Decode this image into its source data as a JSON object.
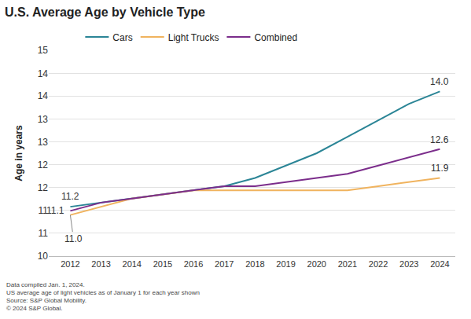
{
  "chart_data": {
    "type": "line",
    "title": "U.S. Average Age by Vehicle Type",
    "y_label": "Age in years",
    "x": [
      2012,
      2013,
      2014,
      2015,
      2016,
      2017,
      2018,
      2019,
      2020,
      2021,
      2022,
      2023,
      2024
    ],
    "series": [
      {
        "name": "Cars",
        "color": "#2b8596",
        "values": [
          11.2,
          11.3,
          11.4,
          11.5,
          11.6,
          11.7,
          11.9,
          12.2,
          12.5,
          12.9,
          13.3,
          13.7,
          14.0
        ]
      },
      {
        "name": "Light Trucks",
        "color": "#f0b35e",
        "values": [
          11.0,
          11.2,
          11.4,
          11.5,
          11.6,
          11.6,
          11.6,
          11.6,
          11.6,
          11.6,
          11.7,
          11.8,
          11.9
        ]
      },
      {
        "name": "Combined",
        "color": "#7b2d8b",
        "values": [
          11.1,
          11.3,
          11.4,
          11.5,
          11.6,
          11.7,
          11.7,
          11.8,
          11.9,
          12.0,
          12.2,
          12.4,
          12.6
        ]
      }
    ],
    "annotations": [
      {
        "series": "Cars",
        "x": 2024,
        "text": "14.0"
      },
      {
        "series": "Combined",
        "x": 2024,
        "text": "12.6"
      },
      {
        "series": "Light Trucks",
        "x": 2024,
        "text": "11.9"
      },
      {
        "series": "Cars",
        "x": 2012,
        "text": "11.2"
      },
      {
        "series": "Combined",
        "x": 2012,
        "text": "11.1"
      },
      {
        "series": "Light Trucks",
        "x": 2012,
        "text": "11.0"
      }
    ],
    "xlim": [
      2011.3,
      2024.5
    ],
    "xticks": [
      2012,
      2013,
      2014,
      2015,
      2016,
      2017,
      2018,
      2019,
      2020,
      2021,
      2022,
      2023,
      2024
    ],
    "ylim": [
      10,
      15
    ],
    "yticks": [
      10,
      {
        "value": 10.56,
        "label": "11"
      },
      {
        "value": 11.11,
        "label": "11"
      },
      {
        "value": 11.67,
        "label": "12"
      },
      {
        "value": 12.22,
        "label": "12"
      },
      {
        "value": 12.78,
        "label": "13"
      },
      {
        "value": 13.33,
        "label": "13"
      },
      {
        "value": 13.89,
        "label": "14"
      },
      {
        "value": 14.44,
        "label": "14"
      },
      15
    ],
    "grid": true,
    "legend": "top",
    "notes": [
      "Data compiled Jan. 1, 2024.",
      "US average age of light vehicles as of January 1 for each year shown",
      "Source: S&P Global Mobility.",
      "© 2024 S&P Global."
    ]
  }
}
